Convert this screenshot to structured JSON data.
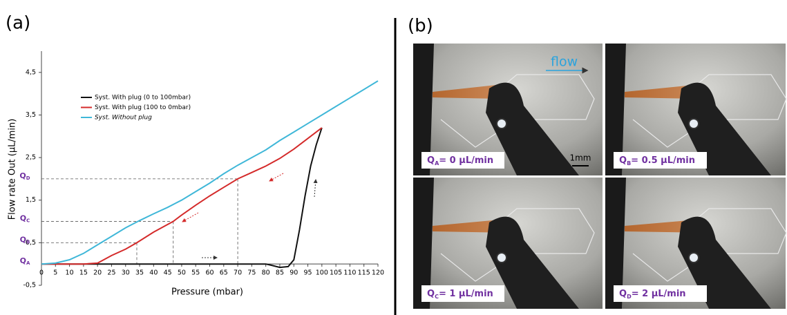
{
  "panel_a_label": "(a)",
  "panel_b_label": "(b)",
  "chart_data": {
    "type": "line",
    "x_label": "Pressure (mbar)",
    "y_label": "Flow rate Out (µL/min)",
    "xlim": [
      0,
      120
    ],
    "ylim": [
      -0.5,
      5
    ],
    "xticks": [
      0,
      5,
      10,
      15,
      20,
      25,
      30,
      35,
      40,
      45,
      50,
      55,
      60,
      65,
      70,
      75,
      80,
      85,
      90,
      95,
      100,
      105,
      110,
      115,
      120
    ],
    "yticks": [
      {
        "value": -0.5,
        "label": "-0,5"
      },
      {
        "value": 0.5,
        "label": "0,5"
      },
      {
        "value": 1.5,
        "label": "1,5"
      },
      {
        "value": 2.5,
        "label": "2,5"
      },
      {
        "value": 3.5,
        "label": "3,5"
      },
      {
        "value": 4.5,
        "label": "4,5"
      }
    ],
    "legend": "upper left",
    "series": [
      {
        "name": "Syst. With plug (0 to 100mbar)",
        "color": "#111111",
        "font_style": "normal",
        "x": [
          0,
          20,
          40,
          60,
          80,
          82,
          85,
          88,
          90,
          92,
          94,
          96,
          98,
          100
        ],
        "values": [
          0,
          0,
          0,
          0,
          0,
          -0.03,
          -0.08,
          -0.06,
          0.1,
          0.8,
          1.6,
          2.3,
          2.8,
          3.2
        ]
      },
      {
        "name": "Syst. With plug (100 to 0mbar)",
        "color": "#d42a2a",
        "font_style": "normal",
        "x": [
          0,
          5,
          10,
          15,
          20,
          25,
          30,
          34,
          40,
          47,
          50,
          55,
          60,
          65,
          70,
          75,
          80,
          85,
          90,
          95,
          100
        ],
        "values": [
          0,
          0,
          0,
          0,
          0.02,
          0.2,
          0.35,
          0.5,
          0.75,
          1,
          1.15,
          1.38,
          1.6,
          1.8,
          2,
          2.15,
          2.3,
          2.48,
          2.7,
          2.95,
          3.2
        ]
      },
      {
        "name": "Syst. Without plug",
        "color": "#3fb7d8",
        "font_style": "italic",
        "x": [
          0,
          5,
          10,
          15,
          20,
          25,
          30,
          35,
          40,
          45,
          50,
          55,
          60,
          65,
          70,
          75,
          80,
          85,
          90,
          95,
          100,
          105,
          110,
          115,
          120
        ],
        "values": [
          0,
          0.02,
          0.1,
          0.25,
          0.45,
          0.65,
          0.85,
          1.02,
          1.18,
          1.33,
          1.5,
          1.7,
          1.9,
          2.12,
          2.32,
          2.5,
          2.68,
          2.9,
          3.1,
          3.3,
          3.5,
          3.7,
          3.9,
          4.1,
          4.3
        ]
      }
    ],
    "q_markers": [
      {
        "label": "Q",
        "subscript": "A",
        "value": 0
      },
      {
        "label": "Q",
        "subscript": "B",
        "value": 0.5,
        "x": 34
      },
      {
        "label": "Q",
        "subscript": "C",
        "value": 1,
        "x": 47
      },
      {
        "label": "Q",
        "subscript": "D",
        "value": 2,
        "x": 70
      }
    ]
  },
  "photos": {
    "flow_label": "flow",
    "scale_label": "1mm",
    "tiles": [
      {
        "label": "Q",
        "subscript": "A",
        "text": "= 0 µL/min"
      },
      {
        "label": "Q",
        "subscript": "B",
        "text": "= 0.5 µL/min"
      },
      {
        "label": "Q",
        "subscript": "C",
        "text": "= 1 µL/min"
      },
      {
        "label": "Q",
        "subscript": "D",
        "text": "= 2 µL/min"
      }
    ]
  }
}
